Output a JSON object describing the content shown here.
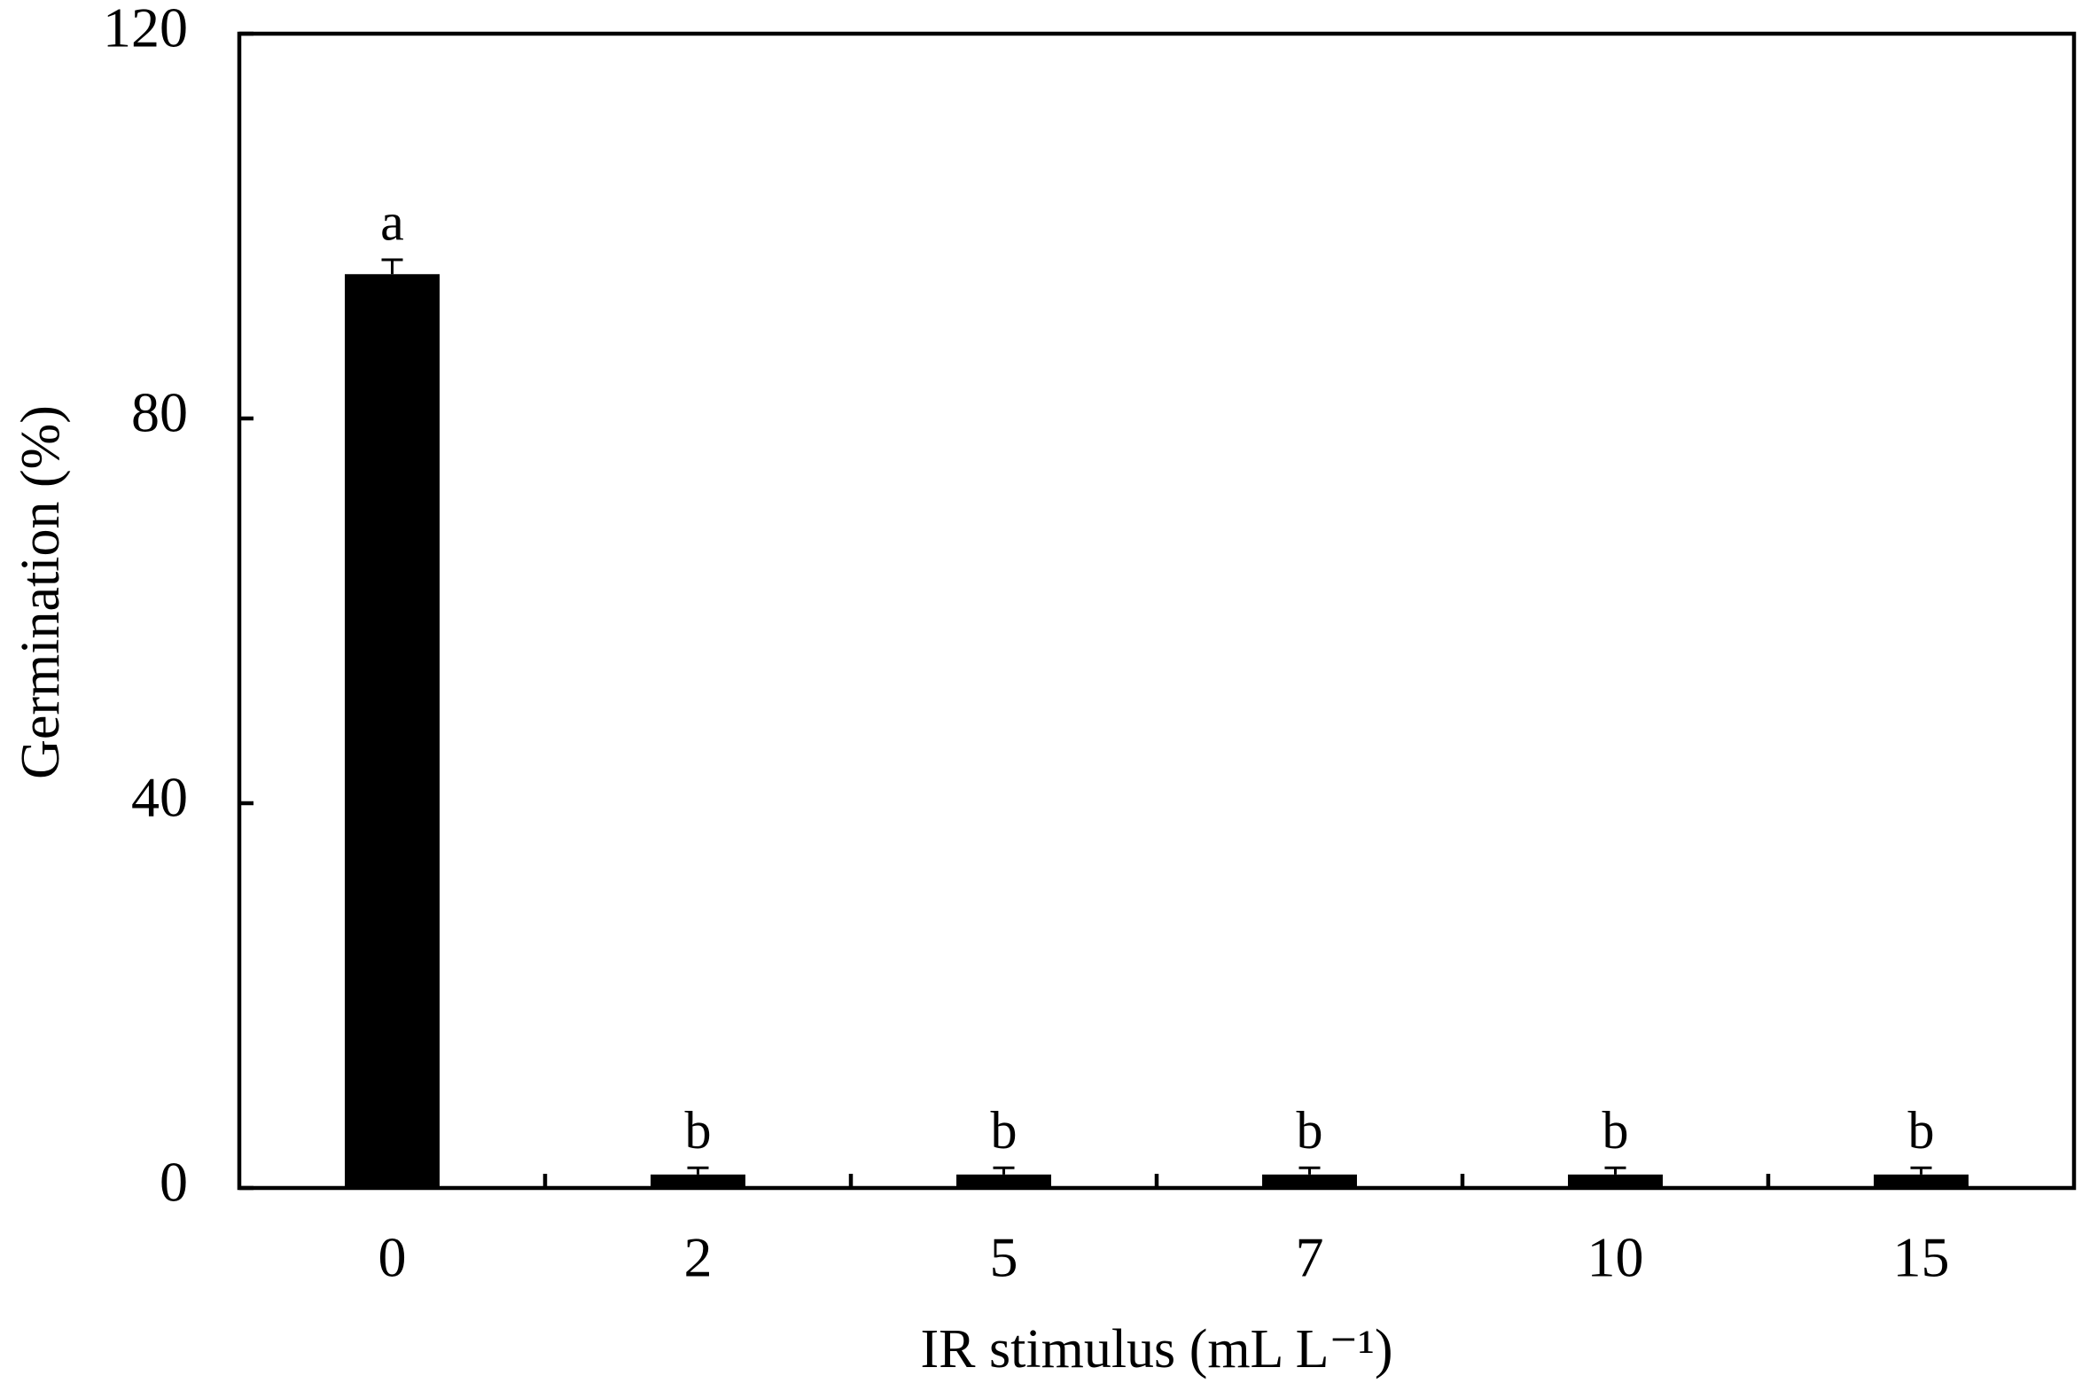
{
  "chart_data": {
    "type": "bar",
    "x_label": "IR stimulus (mL L⁻¹)",
    "y_label": "Germination (%)",
    "categories": [
      "0",
      "2",
      "5",
      "7",
      "10",
      "15"
    ],
    "values": [
      95,
      1.4,
      1.4,
      1.4,
      1.4,
      1.4
    ],
    "errors": [
      1.5,
      0.7,
      0.7,
      0.7,
      0.7,
      0.7
    ],
    "annotations": [
      "a",
      "b",
      "b",
      "b",
      "b",
      "b"
    ],
    "color": "#000000",
    "ylim": [
      0,
      120
    ],
    "yticks": [
      0,
      40,
      80,
      120
    ],
    "grid": false
  }
}
